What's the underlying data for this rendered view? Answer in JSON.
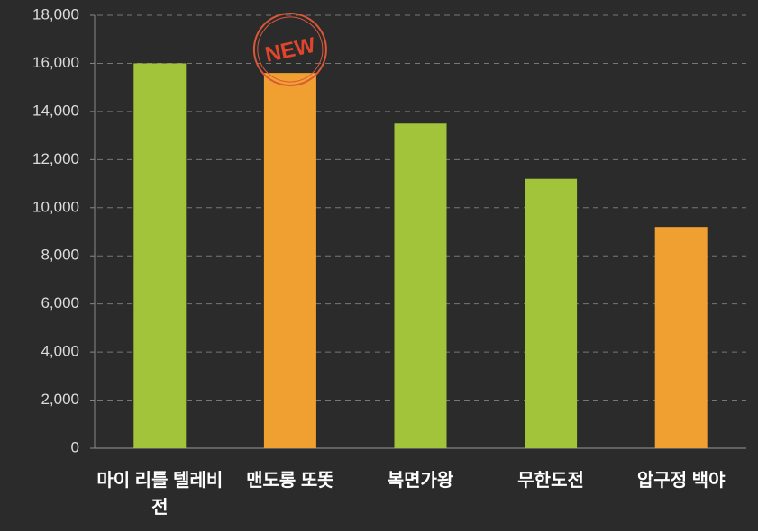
{
  "chart_data": {
    "type": "bar",
    "categories": [
      "마이 리틀 텔레비전",
      "맨도롱 또똣",
      "복면가왕",
      "무한도전",
      "압구정 백야"
    ],
    "values": [
      16000,
      15600,
      13500,
      11200,
      9200
    ],
    "colors": [
      "#a2c43a",
      "#f0a030",
      "#a2c43a",
      "#a2c43a",
      "#f0a030"
    ],
    "annotation": "NEW",
    "ylim": [
      0,
      18000
    ],
    "yticks": [
      0,
      {
        "value": 2000,
        "label": "2,000"
      },
      {
        "value": 4000,
        "label": "4,000"
      },
      {
        "value": 6000,
        "label": "6,000"
      },
      {
        "value": 8000,
        "label": "8,000"
      },
      {
        "value": 10000,
        "label": "10,000"
      },
      {
        "value": 12000,
        "label": "12,000"
      },
      {
        "value": 14000,
        "label": "14,000"
      },
      {
        "value": 16000,
        "label": "16,000"
      },
      {
        "value": 18000,
        "label": "18,000"
      }
    ],
    "grid": true
  }
}
